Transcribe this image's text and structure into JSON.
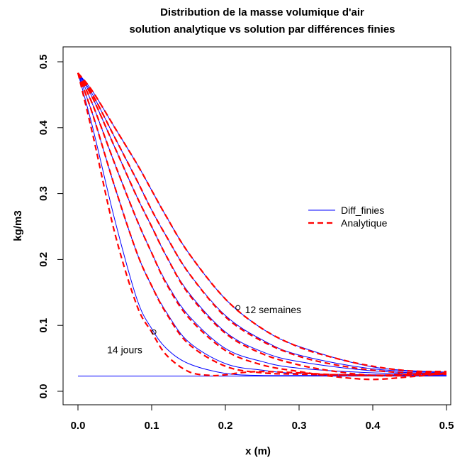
{
  "chart_data": {
    "type": "line",
    "title_line1": "Distribution de la masse volumique d'air",
    "title_line2": "solution analytique vs solution par différences finies",
    "xlabel": "x (m)",
    "ylabel": "kg/m3",
    "xlim": [
      0.0,
      0.5
    ],
    "ylim": [
      0.0,
      0.5
    ],
    "xticks": [
      "0.0",
      "0.1",
      "0.2",
      "0.3",
      "0.4",
      "0.5"
    ],
    "yticks": [
      "0.0",
      "0.1",
      "0.2",
      "0.3",
      "0.4",
      "0.5"
    ],
    "grid": false,
    "legend": {
      "position": "right",
      "entries": [
        {
          "name": "Diff_finies",
          "color": "#0000ff",
          "style": "solid"
        },
        {
          "name": "Analytique",
          "color": "#ff0000",
          "style": "dashed"
        }
      ]
    },
    "annotations": [
      {
        "text": "14 jours",
        "x": 0.103,
        "y": 0.09
      },
      {
        "text": "12 semaines",
        "x": 0.217,
        "y": 0.127
      }
    ],
    "baseline": {
      "name": "Diff_finies",
      "y": 0.023,
      "x": [
        0.0,
        0.5
      ]
    },
    "series": [
      {
        "name": "Diff_finies",
        "color": "#0000ff",
        "curves": [
          {
            "x": [
              0.0,
              0.02,
              0.05,
              0.08,
              0.1,
              0.12,
              0.15,
              0.2,
              0.25,
              0.3,
              0.4,
              0.5
            ],
            "y": [
              0.483,
              0.4,
              0.26,
              0.14,
              0.095,
              0.065,
              0.042,
              0.027,
              0.024,
              0.024,
              0.024,
              0.024
            ]
          },
          {
            "x": [
              0.0,
              0.02,
              0.05,
              0.08,
              0.1,
              0.12,
              0.15,
              0.2,
              0.25,
              0.3,
              0.4,
              0.5
            ],
            "y": [
              0.483,
              0.42,
              0.31,
              0.21,
              0.16,
              0.12,
              0.075,
              0.042,
              0.032,
              0.027,
              0.025,
              0.025
            ]
          },
          {
            "x": [
              0.0,
              0.02,
              0.05,
              0.08,
              0.1,
              0.12,
              0.15,
              0.2,
              0.25,
              0.3,
              0.4,
              0.5
            ],
            "y": [
              0.483,
              0.435,
              0.345,
              0.26,
              0.21,
              0.165,
              0.115,
              0.065,
              0.045,
              0.035,
              0.028,
              0.026
            ]
          },
          {
            "x": [
              0.0,
              0.02,
              0.05,
              0.08,
              0.1,
              0.12,
              0.15,
              0.2,
              0.25,
              0.3,
              0.4,
              0.5
            ],
            "y": [
              0.483,
              0.445,
              0.37,
              0.295,
              0.25,
              0.205,
              0.15,
              0.09,
              0.06,
              0.045,
              0.031,
              0.027
            ]
          },
          {
            "x": [
              0.0,
              0.02,
              0.05,
              0.08,
              0.1,
              0.12,
              0.15,
              0.2,
              0.25,
              0.3,
              0.4,
              0.5
            ],
            "y": [
              0.483,
              0.45,
              0.385,
              0.32,
              0.275,
              0.235,
              0.18,
              0.115,
              0.078,
              0.055,
              0.034,
              0.028
            ]
          },
          {
            "x": [
              0.0,
              0.02,
              0.05,
              0.08,
              0.1,
              0.12,
              0.15,
              0.2,
              0.25,
              0.3,
              0.4,
              0.5
            ],
            "y": [
              0.483,
              0.455,
              0.4,
              0.345,
              0.305,
              0.265,
              0.21,
              0.14,
              0.095,
              0.068,
              0.037,
              0.029
            ]
          }
        ]
      },
      {
        "name": "Analytique",
        "color": "#ff0000",
        "curves": [
          {
            "x": [
              0.0,
              0.02,
              0.05,
              0.08,
              0.1,
              0.12,
              0.15,
              0.18,
              0.2,
              0.22,
              0.25,
              0.3,
              0.35,
              0.4,
              0.45,
              0.5
            ],
            "y": [
              0.483,
              0.39,
              0.24,
              0.13,
              0.09,
              0.055,
              0.03,
              0.024,
              0.025,
              0.028,
              0.03,
              0.028,
              0.025,
              0.024,
              0.025,
              0.026
            ]
          },
          {
            "x": [
              0.0,
              0.02,
              0.05,
              0.08,
              0.1,
              0.12,
              0.15,
              0.2,
              0.25,
              0.3,
              0.35,
              0.4,
              0.45,
              0.5
            ],
            "y": [
              0.483,
              0.42,
              0.31,
              0.21,
              0.16,
              0.118,
              0.072,
              0.038,
              0.028,
              0.026,
              0.025,
              0.024,
              0.026,
              0.027
            ]
          },
          {
            "x": [
              0.0,
              0.02,
              0.05,
              0.08,
              0.1,
              0.12,
              0.15,
              0.2,
              0.25,
              0.3,
              0.35,
              0.4,
              0.45,
              0.5
            ],
            "y": [
              0.483,
              0.435,
              0.345,
              0.26,
              0.21,
              0.163,
              0.112,
              0.062,
              0.04,
              0.03,
              0.022,
              0.018,
              0.022,
              0.027
            ]
          },
          {
            "x": [
              0.0,
              0.02,
              0.05,
              0.08,
              0.1,
              0.12,
              0.15,
              0.2,
              0.25,
              0.3,
              0.35,
              0.4,
              0.45,
              0.5
            ],
            "y": [
              0.483,
              0.445,
              0.37,
              0.295,
              0.25,
              0.205,
              0.148,
              0.088,
              0.057,
              0.04,
              0.03,
              0.024,
              0.024,
              0.028
            ]
          },
          {
            "x": [
              0.0,
              0.02,
              0.05,
              0.08,
              0.1,
              0.12,
              0.15,
              0.2,
              0.25,
              0.3,
              0.35,
              0.4,
              0.45,
              0.5
            ],
            "y": [
              0.483,
              0.45,
              0.385,
              0.32,
              0.275,
              0.235,
              0.18,
              0.113,
              0.076,
              0.053,
              0.04,
              0.032,
              0.028,
              0.029
            ]
          },
          {
            "x": [
              0.0,
              0.02,
              0.05,
              0.08,
              0.1,
              0.12,
              0.15,
              0.2,
              0.25,
              0.3,
              0.35,
              0.4,
              0.45,
              0.5
            ],
            "y": [
              0.483,
              0.455,
              0.4,
              0.345,
              0.305,
              0.265,
              0.21,
              0.14,
              0.095,
              0.067,
              0.05,
              0.038,
              0.031,
              0.03
            ]
          }
        ]
      }
    ]
  }
}
